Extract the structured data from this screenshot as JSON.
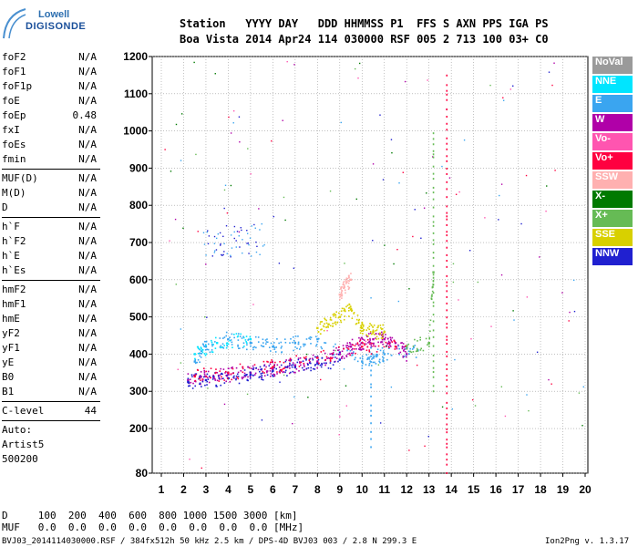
{
  "header": {
    "logo_top": "Lowell",
    "logo_bottom": "DIGISONDE",
    "line1": "Station   YYYY DAY   DDD HHMMSS P1  FFS S AXN PPS IGA PS",
    "line2": "Boa Vista 2014 Apr24 114 030000 RSF 005 2 713 100 03+ C0"
  },
  "params_group1": [
    {
      "name": "foF2",
      "value": "N/A"
    },
    {
      "name": "foF1",
      "value": "N/A"
    },
    {
      "name": "foF1p",
      "value": "N/A"
    },
    {
      "name": "foE",
      "value": "N/A"
    },
    {
      "name": "foEp",
      "value": "0.48"
    },
    {
      "name": "fxI",
      "value": "N/A"
    },
    {
      "name": "foEs",
      "value": "N/A"
    },
    {
      "name": "fmin",
      "value": "N/A"
    }
  ],
  "params_group2": [
    {
      "name": "MUF(D)",
      "value": "N/A"
    },
    {
      "name": "M(D)",
      "value": "N/A"
    },
    {
      "name": "D",
      "value": "N/A"
    }
  ],
  "params_group3": [
    {
      "name": "h`F",
      "value": "N/A"
    },
    {
      "name": "h`F2",
      "value": "N/A"
    },
    {
      "name": "h`E",
      "value": "N/A"
    },
    {
      "name": "h`Es",
      "value": "N/A"
    }
  ],
  "params_group4": [
    {
      "name": "hmF2",
      "value": "N/A"
    },
    {
      "name": "hmF1",
      "value": "N/A"
    },
    {
      "name": "hmE",
      "value": "N/A"
    },
    {
      "name": "yF2",
      "value": "N/A"
    },
    {
      "name": "yF1",
      "value": "N/A"
    },
    {
      "name": "yE",
      "value": "N/A"
    },
    {
      "name": "B0",
      "value": "N/A"
    },
    {
      "name": "B1",
      "value": "N/A"
    }
  ],
  "params_group5": [
    {
      "name": "C-level",
      "value": "44"
    }
  ],
  "auto_lines": [
    "Auto:",
    "Artist5",
    "500200"
  ],
  "footer": {
    "d_line": "D     100  200  400  600  800 1000 1500 3000 [km]",
    "muf_line": "MUF   0.0  0.0  0.0  0.0  0.0  0.0  0.0  0.0 [MHz]",
    "file_info": "BVJ03_2014114030000.RSF / 384fx512h 50 kHz 2.5 km / DPS-4D BVJ03 003 / 2.8 N 299.3 E",
    "version": "Ion2Png v. 1.3.17"
  },
  "legend": [
    {
      "label": "NoVal",
      "color": "#9a9a9a"
    },
    {
      "label": "NNE",
      "color": "#00e5ff"
    },
    {
      "label": "E",
      "color": "#3aa5f0"
    },
    {
      "label": "W",
      "color": "#b000a8"
    },
    {
      "label": "Vo-",
      "color": "#ff55b0"
    },
    {
      "label": "Vo+",
      "color": "#ff0040"
    },
    {
      "label": "SSW",
      "color": "#ffb0b0"
    },
    {
      "label": "X-",
      "color": "#007a00"
    },
    {
      "label": "X+",
      "color": "#66bb55"
    },
    {
      "label": "SSE",
      "color": "#d8d000"
    },
    {
      "label": "NNW",
      "color": "#2020d0"
    }
  ],
  "chart_data": {
    "type": "scatter",
    "title": "",
    "xlabel": "",
    "ylabel": "",
    "xlim": [
      0.5,
      20
    ],
    "ylim": [
      80,
      1200
    ],
    "x_ticks": [
      1,
      2,
      3,
      4,
      5,
      6,
      7,
      8,
      9,
      10,
      11,
      12,
      13,
      14,
      15,
      16,
      17,
      18,
      19,
      20
    ],
    "y_ticks": [
      80,
      200,
      300,
      400,
      500,
      600,
      700,
      800,
      900,
      1000,
      1100,
      1200
    ],
    "grid": true,
    "series": [
      {
        "name": "W",
        "color": "#b000a8",
        "points": [
          [
            2.2,
            330
          ],
          [
            3,
            340
          ],
          [
            4,
            345
          ],
          [
            5,
            350
          ],
          [
            6,
            360
          ],
          [
            7,
            370
          ],
          [
            8,
            380
          ],
          [
            9,
            400
          ],
          [
            9.5,
            420
          ],
          [
            10,
            430
          ],
          [
            10.5,
            440
          ],
          [
            11,
            440
          ],
          [
            11.5,
            430
          ],
          [
            12,
            400
          ]
        ]
      },
      {
        "name": "E",
        "color": "#3aa5f0",
        "points": [
          [
            2.5,
            380
          ],
          [
            3,
            420
          ],
          [
            4,
            440
          ],
          [
            5,
            430
          ],
          [
            6,
            420
          ],
          [
            7,
            430
          ],
          [
            8,
            440
          ],
          [
            10,
            380
          ],
          [
            10.5,
            390
          ],
          [
            11,
            400
          ],
          [
            12.5,
            410
          ]
        ]
      },
      {
        "name": "NNW",
        "color": "#2020d0",
        "points": [
          [
            2.2,
            325
          ],
          [
            3,
            330
          ],
          [
            4,
            335
          ],
          [
            5,
            345
          ],
          [
            6,
            355
          ],
          [
            7,
            365
          ],
          [
            8,
            375
          ],
          [
            9,
            385
          ]
        ]
      },
      {
        "name": "Vo+",
        "color": "#ff0040",
        "points": [
          [
            2.5,
            340
          ],
          [
            4,
            350
          ],
          [
            6,
            365
          ],
          [
            8,
            390
          ],
          [
            10,
            420
          ],
          [
            11.5,
            420
          ]
        ]
      },
      {
        "name": "SSE",
        "color": "#d8d000",
        "points": [
          [
            8,
            470
          ],
          [
            8.5,
            480
          ],
          [
            9,
            500
          ],
          [
            9.5,
            520
          ],
          [
            10,
            470
          ],
          [
            10.5,
            460
          ],
          [
            11,
            460
          ]
        ]
      },
      {
        "name": "SSW",
        "color": "#ffb0b0",
        "points": [
          [
            9,
            560
          ],
          [
            9.2,
            580
          ],
          [
            9.5,
            600
          ]
        ]
      },
      {
        "name": "NNE",
        "color": "#00e5ff",
        "points": [
          [
            2.5,
            400
          ],
          [
            3.5,
            430
          ],
          [
            5,
            440
          ]
        ]
      },
      {
        "name": "X+",
        "color": "#66bb55",
        "points": [
          [
            12,
            420
          ],
          [
            13,
            430
          ],
          [
            13.2,
            620
          ]
        ]
      }
    ]
  }
}
